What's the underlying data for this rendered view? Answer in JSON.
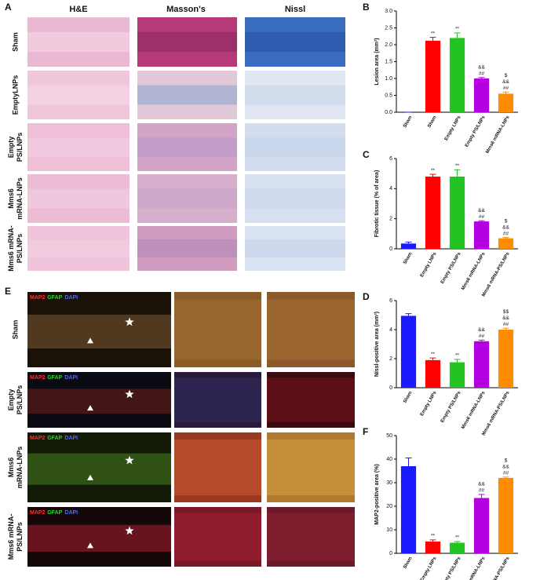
{
  "figure": {
    "panel_a": {
      "label": "A",
      "columns": [
        "H&E",
        "Masson's",
        "Nissl"
      ],
      "rows": [
        [
          "Sham"
        ],
        [
          "EmptyLNPs"
        ],
        [
          "Empty",
          "PS/LNPs"
        ],
        [
          "Mms6",
          "mRNA-LNPs"
        ],
        [
          "Mms6 mRNA-",
          "PS/LNPs"
        ]
      ]
    },
    "panel_e": {
      "label": "E",
      "stain": [
        "MAP2",
        "GFAP",
        "DAPI"
      ],
      "rows": [
        [
          "Sham"
        ],
        [
          "Empty",
          "PS/LNPs"
        ],
        [
          "Mms6",
          "mRNA-LNPs"
        ],
        [
          "Mms6 mRNA-",
          "PS/LNPs"
        ]
      ]
    }
  },
  "chart_data": [
    {
      "type": "bar",
      "panel": "B",
      "y_label": "Lesion area (mm²)",
      "categories": [
        "Sham",
        "Sham",
        "Empty LNPs",
        "Empty PS/LNPs",
        "Mms6 mRNA-LNPs"
      ],
      "values": [
        0,
        2.12,
        2.2,
        1.0,
        0.55
      ],
      "errors": [
        0,
        0.1,
        0.15,
        0.03,
        0.05
      ],
      "colors": [
        "#1a1aff",
        "#ff0000",
        "#22c422",
        "#b400e0",
        "#ff8c00"
      ],
      "annotations": [
        null,
        [
          "**"
        ],
        [
          "**"
        ],
        [
          "&&",
          "##"
        ],
        [
          "$",
          "&&",
          "##"
        ]
      ],
      "ylim": [
        0,
        3
      ],
      "yticks": [
        {
          "value": 0,
          "label": "0.0"
        },
        0.5,
        {
          "value": 1,
          "label": "1.0"
        },
        1.5,
        {
          "value": 2,
          "label": "2.0"
        },
        2.5,
        {
          "value": 3,
          "label": "3.0"
        }
      ]
    },
    {
      "type": "bar",
      "panel": "C",
      "y_label": "Fibrotic tissue (% of area)",
      "categories": [
        "Sham",
        "Empty LNPs",
        "Empty PS/LNPs",
        "Mms6 mRNA-LNPs",
        "Mms6 mRNA-PS/LNPs"
      ],
      "values": [
        0.35,
        4.8,
        4.8,
        1.82,
        0.7
      ],
      "errors": [
        0.1,
        0.15,
        0.45,
        0.05,
        0.05
      ],
      "colors": [
        "#1a1aff",
        "#ff0000",
        "#22c422",
        "#b400e0",
        "#ff8c00"
      ],
      "annotations": [
        null,
        [
          "**"
        ],
        [
          "**"
        ],
        [
          "&&",
          "##"
        ],
        [
          "$",
          "&&",
          "##"
        ]
      ],
      "ylim": [
        0,
        6
      ],
      "yticks": [
        0,
        2,
        4,
        6
      ]
    },
    {
      "type": "bar",
      "panel": "D",
      "y_label": "Nissl-positive area (mm²)",
      "categories": [
        "Sham",
        "Empty LNPs",
        "Empty PS/LNPs",
        "Mms6 mRNA-LNPs",
        "Mms6 mRNA-PS/LNPs"
      ],
      "values": [
        4.95,
        1.9,
        1.75,
        3.2,
        4.0
      ],
      "errors": [
        0.15,
        0.15,
        0.2,
        0.08,
        0.1
      ],
      "colors": [
        "#1a1aff",
        "#ff0000",
        "#22c422",
        "#b400e0",
        "#ff8c00"
      ],
      "annotations": [
        null,
        [
          "**"
        ],
        [
          "**"
        ],
        [
          "&&",
          "##"
        ],
        [
          "$$",
          "&&",
          "##"
        ]
      ],
      "ylim": [
        0,
        6
      ],
      "yticks": [
        0,
        2,
        4,
        6
      ]
    },
    {
      "type": "bar",
      "panel": "F",
      "y_label": "MAP2-positive area (%)",
      "categories": [
        "Sham",
        "Empty LNPs",
        "Empty PS/LNPs",
        "Mms6 mRNA-LNPs",
        "Mms6 mRNA-PS/LNPs"
      ],
      "values": [
        37,
        5,
        4.5,
        23.5,
        32
      ],
      "errors": [
        3.5,
        0.7,
        0.5,
        1.5,
        0.4
      ],
      "colors": [
        "#1a1aff",
        "#ff0000",
        "#22c422",
        "#b400e0",
        "#ff8c00"
      ],
      "annotations": [
        null,
        [
          "**"
        ],
        [
          "**"
        ],
        [
          "&&",
          "##"
        ],
        [
          "$",
          "&&",
          "##"
        ]
      ],
      "ylim": [
        0,
        50
      ],
      "yticks": [
        0,
        10,
        20,
        30,
        40,
        50
      ]
    }
  ]
}
